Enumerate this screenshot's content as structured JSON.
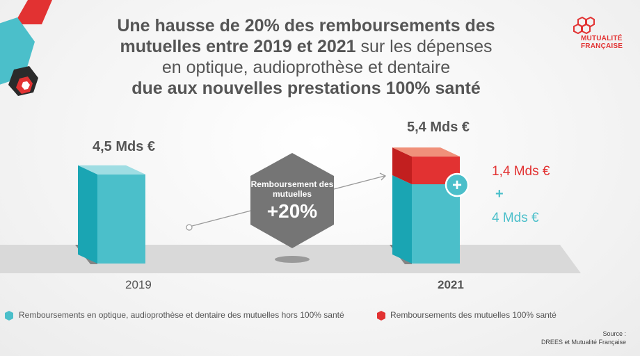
{
  "title": {
    "line1": "Une hausse de 20% des remboursements des",
    "line2_bold": "mutuelles entre 2019 et 2021",
    "line2_rest": " sur les dépenses",
    "line3": "en optique, audioprothèse et dentaire",
    "line4": "due aux nouvelles prestations 100% santé"
  },
  "logo": {
    "line1": "MUTUALITÉ",
    "line2": "FRANÇAISE"
  },
  "colors": {
    "teal": "#4bbfca",
    "teal_dark": "#1aa5b3",
    "red": "#e23232",
    "grey": "#757575"
  },
  "chart_data": {
    "type": "bar",
    "categories": [
      "2019",
      "2021"
    ],
    "series": [
      {
        "name": "Remboursements en optique, audioprothèse et dentaire des mutuelles hors 100% santé",
        "values": [
          4.5,
          4.0
        ]
      },
      {
        "name": "Remboursements des mutuelles 100% santé",
        "values": [
          0,
          1.4
        ]
      }
    ],
    "totals": [
      "4,5 Mds €",
      "5,4 Mds €"
    ],
    "segment_labels": {
      "red": "1,4 Mds €",
      "plus": "+",
      "teal": "4 Mds €"
    },
    "annotation": {
      "text": "Remboursement des mutuelles",
      "value": "+20%"
    },
    "unit": "Mds €"
  },
  "legend": {
    "item1": "Remboursements en optique, audioprothèse et dentaire des mutuelles hors 100% santé",
    "item2": "Remboursements des mutuelles 100% santé"
  },
  "source": {
    "line1": "Source :",
    "line2": "DREES et Mutualité Française"
  }
}
